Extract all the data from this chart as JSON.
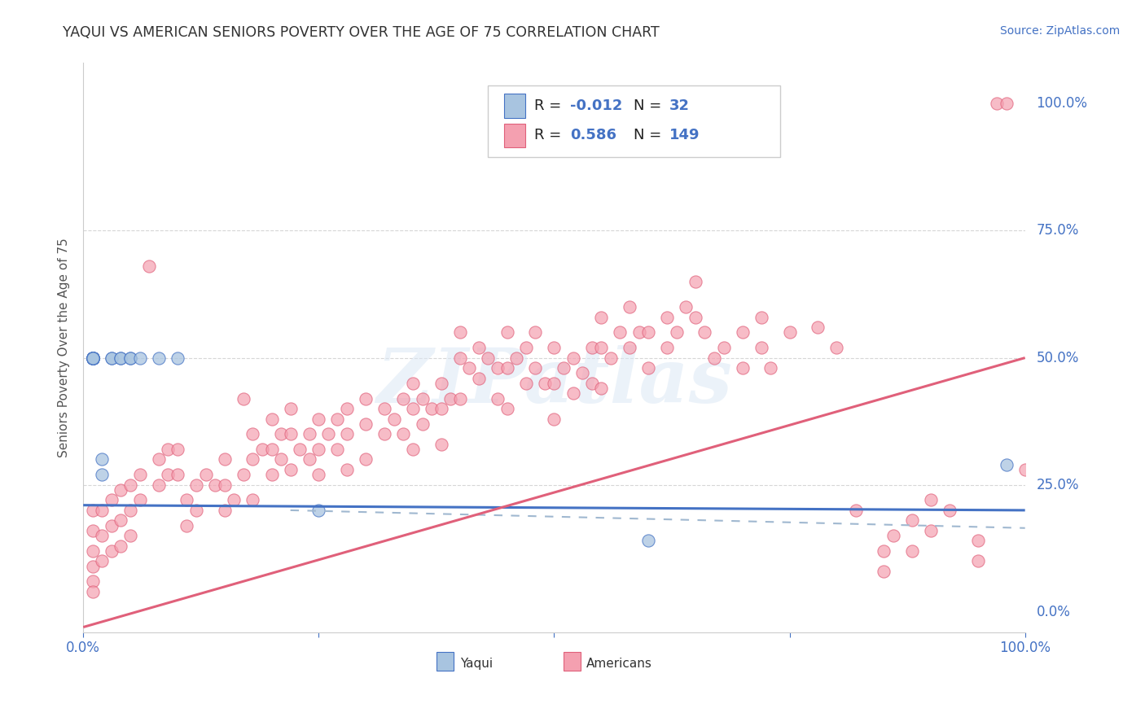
{
  "title": "YAQUI VS AMERICAN SENIORS POVERTY OVER THE AGE OF 75 CORRELATION CHART",
  "source_text": "Source: ZipAtlas.com",
  "ylabel": "Seniors Poverty Over the Age of 75",
  "watermark": "ZIPatlas",
  "yaqui_color": "#a8c4e0",
  "american_color": "#f4a0b0",
  "yaqui_line_color": "#4472c4",
  "american_line_color": "#e0607a",
  "dashed_line_color": "#a0b8d0",
  "right_label_color": "#4472c4",
  "bg_color": "#ffffff",
  "grid_color": "#e8e8e8",
  "xlim": [
    0.0,
    1.0
  ],
  "ylim": [
    -0.04,
    1.08
  ],
  "ytick_positions": [
    0.0,
    0.25,
    0.5,
    0.75,
    1.0
  ],
  "ytick_labels": [
    "0.0%",
    "25.0%",
    "50.0%",
    "75.0%",
    "100.0%"
  ],
  "xtick_positions": [
    0.0,
    0.25,
    0.5,
    0.75,
    1.0
  ],
  "xtick_labels": [
    "0.0%",
    "",
    "",
    "",
    "100.0%"
  ],
  "yaqui_points": [
    [
      0.01,
      0.5
    ],
    [
      0.01,
      0.5
    ],
    [
      0.01,
      0.5
    ],
    [
      0.01,
      0.5
    ],
    [
      0.01,
      0.5
    ],
    [
      0.01,
      0.5
    ],
    [
      0.01,
      0.5
    ],
    [
      0.01,
      0.5
    ],
    [
      0.01,
      0.5
    ],
    [
      0.01,
      0.5
    ],
    [
      0.01,
      0.5
    ],
    [
      0.01,
      0.5
    ],
    [
      0.01,
      0.5
    ],
    [
      0.01,
      0.5
    ],
    [
      0.01,
      0.5
    ],
    [
      0.01,
      0.5
    ],
    [
      0.01,
      0.5
    ],
    [
      0.01,
      0.5
    ],
    [
      0.02,
      0.3
    ],
    [
      0.02,
      0.27
    ],
    [
      0.03,
      0.5
    ],
    [
      0.03,
      0.5
    ],
    [
      0.04,
      0.5
    ],
    [
      0.04,
      0.5
    ],
    [
      0.05,
      0.5
    ],
    [
      0.05,
      0.5
    ],
    [
      0.06,
      0.5
    ],
    [
      0.08,
      0.5
    ],
    [
      0.1,
      0.5
    ],
    [
      0.25,
      0.2
    ],
    [
      0.6,
      0.14
    ],
    [
      0.98,
      0.29
    ]
  ],
  "american_points": [
    [
      0.01,
      0.2
    ],
    [
      0.01,
      0.16
    ],
    [
      0.01,
      0.12
    ],
    [
      0.01,
      0.09
    ],
    [
      0.01,
      0.06
    ],
    [
      0.01,
      0.04
    ],
    [
      0.02,
      0.2
    ],
    [
      0.02,
      0.15
    ],
    [
      0.02,
      0.1
    ],
    [
      0.03,
      0.22
    ],
    [
      0.03,
      0.17
    ],
    [
      0.03,
      0.12
    ],
    [
      0.04,
      0.24
    ],
    [
      0.04,
      0.18
    ],
    [
      0.04,
      0.13
    ],
    [
      0.05,
      0.25
    ],
    [
      0.05,
      0.2
    ],
    [
      0.05,
      0.15
    ],
    [
      0.06,
      0.27
    ],
    [
      0.06,
      0.22
    ],
    [
      0.07,
      0.68
    ],
    [
      0.08,
      0.3
    ],
    [
      0.08,
      0.25
    ],
    [
      0.09,
      0.32
    ],
    [
      0.09,
      0.27
    ],
    [
      0.1,
      0.32
    ],
    [
      0.1,
      0.27
    ],
    [
      0.11,
      0.22
    ],
    [
      0.11,
      0.17
    ],
    [
      0.12,
      0.25
    ],
    [
      0.12,
      0.2
    ],
    [
      0.13,
      0.27
    ],
    [
      0.14,
      0.25
    ],
    [
      0.15,
      0.3
    ],
    [
      0.15,
      0.25
    ],
    [
      0.15,
      0.2
    ],
    [
      0.16,
      0.22
    ],
    [
      0.17,
      0.42
    ],
    [
      0.17,
      0.27
    ],
    [
      0.18,
      0.35
    ],
    [
      0.18,
      0.3
    ],
    [
      0.18,
      0.22
    ],
    [
      0.19,
      0.32
    ],
    [
      0.2,
      0.38
    ],
    [
      0.2,
      0.32
    ],
    [
      0.2,
      0.27
    ],
    [
      0.21,
      0.35
    ],
    [
      0.21,
      0.3
    ],
    [
      0.22,
      0.4
    ],
    [
      0.22,
      0.35
    ],
    [
      0.22,
      0.28
    ],
    [
      0.23,
      0.32
    ],
    [
      0.24,
      0.35
    ],
    [
      0.24,
      0.3
    ],
    [
      0.25,
      0.38
    ],
    [
      0.25,
      0.32
    ],
    [
      0.25,
      0.27
    ],
    [
      0.26,
      0.35
    ],
    [
      0.27,
      0.38
    ],
    [
      0.27,
      0.32
    ],
    [
      0.28,
      0.4
    ],
    [
      0.28,
      0.35
    ],
    [
      0.28,
      0.28
    ],
    [
      0.3,
      0.42
    ],
    [
      0.3,
      0.37
    ],
    [
      0.3,
      0.3
    ],
    [
      0.32,
      0.4
    ],
    [
      0.32,
      0.35
    ],
    [
      0.33,
      0.38
    ],
    [
      0.34,
      0.42
    ],
    [
      0.34,
      0.35
    ],
    [
      0.35,
      0.45
    ],
    [
      0.35,
      0.4
    ],
    [
      0.35,
      0.32
    ],
    [
      0.36,
      0.42
    ],
    [
      0.36,
      0.37
    ],
    [
      0.37,
      0.4
    ],
    [
      0.38,
      0.45
    ],
    [
      0.38,
      0.4
    ],
    [
      0.38,
      0.33
    ],
    [
      0.39,
      0.42
    ],
    [
      0.4,
      0.55
    ],
    [
      0.4,
      0.5
    ],
    [
      0.4,
      0.42
    ],
    [
      0.41,
      0.48
    ],
    [
      0.42,
      0.52
    ],
    [
      0.42,
      0.46
    ],
    [
      0.43,
      0.5
    ],
    [
      0.44,
      0.48
    ],
    [
      0.44,
      0.42
    ],
    [
      0.45,
      0.55
    ],
    [
      0.45,
      0.48
    ],
    [
      0.45,
      0.4
    ],
    [
      0.46,
      0.5
    ],
    [
      0.47,
      0.52
    ],
    [
      0.47,
      0.45
    ],
    [
      0.48,
      0.55
    ],
    [
      0.48,
      0.48
    ],
    [
      0.49,
      0.45
    ],
    [
      0.5,
      0.52
    ],
    [
      0.5,
      0.45
    ],
    [
      0.5,
      0.38
    ],
    [
      0.51,
      0.48
    ],
    [
      0.52,
      0.5
    ],
    [
      0.52,
      0.43
    ],
    [
      0.53,
      0.47
    ],
    [
      0.54,
      0.52
    ],
    [
      0.54,
      0.45
    ],
    [
      0.55,
      0.58
    ],
    [
      0.55,
      0.52
    ],
    [
      0.55,
      0.44
    ],
    [
      0.56,
      0.5
    ],
    [
      0.57,
      0.55
    ],
    [
      0.58,
      0.6
    ],
    [
      0.58,
      0.52
    ],
    [
      0.59,
      0.55
    ],
    [
      0.6,
      0.55
    ],
    [
      0.6,
      0.48
    ],
    [
      0.62,
      0.58
    ],
    [
      0.62,
      0.52
    ],
    [
      0.63,
      0.55
    ],
    [
      0.64,
      0.6
    ],
    [
      0.65,
      0.65
    ],
    [
      0.65,
      0.58
    ],
    [
      0.66,
      0.55
    ],
    [
      0.67,
      0.5
    ],
    [
      0.68,
      0.52
    ],
    [
      0.7,
      0.55
    ],
    [
      0.7,
      0.48
    ],
    [
      0.72,
      0.58
    ],
    [
      0.72,
      0.52
    ],
    [
      0.73,
      0.48
    ],
    [
      0.75,
      0.55
    ],
    [
      0.78,
      0.56
    ],
    [
      0.8,
      0.52
    ],
    [
      0.82,
      0.2
    ],
    [
      0.85,
      0.12
    ],
    [
      0.85,
      0.08
    ],
    [
      0.86,
      0.15
    ],
    [
      0.88,
      0.18
    ],
    [
      0.88,
      0.12
    ],
    [
      0.9,
      0.22
    ],
    [
      0.9,
      0.16
    ],
    [
      0.92,
      0.2
    ],
    [
      0.95,
      0.14
    ],
    [
      0.95,
      0.1
    ],
    [
      0.97,
      1.0
    ],
    [
      0.98,
      1.0
    ],
    [
      1.0,
      0.28
    ]
  ]
}
